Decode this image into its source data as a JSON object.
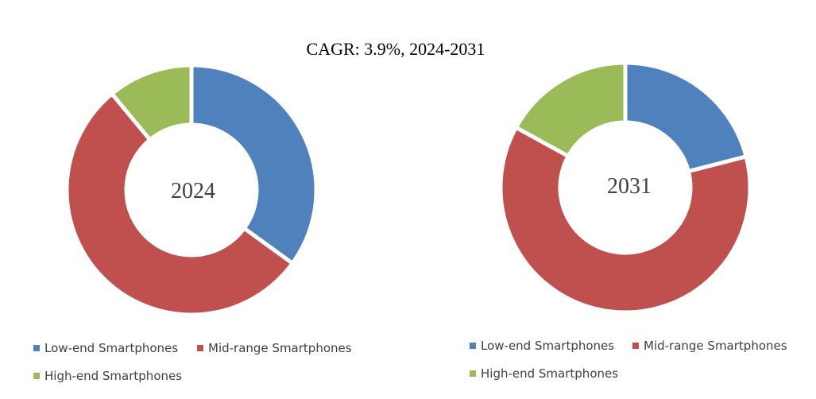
{
  "title": "CAGR:   3.9%, 2024-2031",
  "colors": {
    "low_end": "#4F81BD",
    "mid_range": "#C0504D",
    "high_end": "#9BBB59"
  },
  "chart_data": [
    {
      "type": "pie",
      "variant": "donut",
      "center_label": "2024",
      "categories": [
        "Low-end Smartphones",
        "Mid-range Smartphones",
        "High-end Smartphones"
      ],
      "values": [
        35,
        54,
        11
      ],
      "legend": [
        "Low-end Smartphones",
        "Mid-range Smartphones",
        "High-end Smartphones"
      ]
    },
    {
      "type": "pie",
      "variant": "donut",
      "center_label": "2031",
      "categories": [
        "Low-end Smartphones",
        "Mid-range Smartphones",
        "High-end Smartphones"
      ],
      "values": [
        21,
        62,
        17
      ],
      "legend": [
        "Low-end Smartphones",
        "Mid-range Smartphones",
        "High-end Smartphones"
      ]
    }
  ]
}
